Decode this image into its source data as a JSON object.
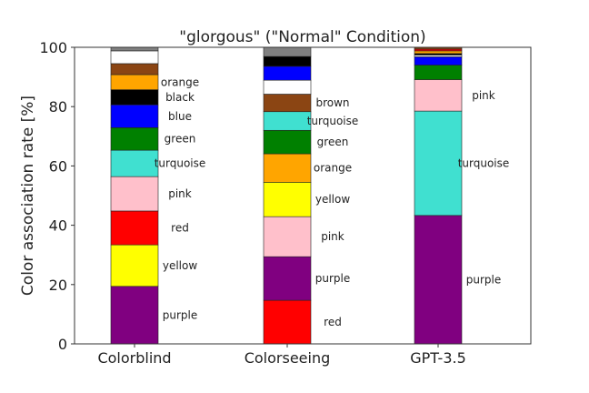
{
  "chart_data": {
    "type": "bar",
    "stacked": true,
    "title": "\"glorgous\" (\"Normal\" Condition)",
    "xlabel": "",
    "ylabel": "Color association rate [%]",
    "ylim": [
      0,
      100
    ],
    "yticks": [
      0,
      20,
      40,
      60,
      80,
      100
    ],
    "grid": false,
    "categories": [
      "Colorblind",
      "Colorseeing",
      "GPT-3.5"
    ],
    "colors": {
      "purple": "#800080",
      "yellow": "#ffff00",
      "red": "#ff0000",
      "pink": "#ffc0cb",
      "turquoise": "#40e0d0",
      "green": "#008000",
      "blue": "#0000ff",
      "black": "#000000",
      "orange": "#ffa500",
      "brown": "#8b4513",
      "white": "#ffffff",
      "gray": "#808080"
    },
    "bars": [
      {
        "category": "Colorblind",
        "segments": [
          {
            "color": "purple",
            "value": 19.4,
            "label": "purple"
          },
          {
            "color": "yellow",
            "value": 14.0,
            "label": "yellow"
          },
          {
            "color": "red",
            "value": 11.4,
            "label": "red"
          },
          {
            "color": "pink",
            "value": 11.6,
            "label": "pink"
          },
          {
            "color": "turquoise",
            "value": 8.9,
            "label": "turquoise"
          },
          {
            "color": "green",
            "value": 7.6,
            "label": "green"
          },
          {
            "color": "blue",
            "value": 7.7,
            "label": "blue"
          },
          {
            "color": "black",
            "value": 5.1,
            "label": "black"
          },
          {
            "color": "orange",
            "value": 5.1,
            "label": "orange"
          },
          {
            "color": "brown",
            "value": 3.7,
            "label": ""
          },
          {
            "color": "white",
            "value": 4.3,
            "label": ""
          },
          {
            "color": "gray",
            "value": 1.2,
            "label": ""
          }
        ]
      },
      {
        "category": "Colorseeing",
        "segments": [
          {
            "color": "red",
            "value": 14.7,
            "label": "red"
          },
          {
            "color": "purple",
            "value": 14.7,
            "label": "purple"
          },
          {
            "color": "pink",
            "value": 13.5,
            "label": "pink"
          },
          {
            "color": "yellow",
            "value": 11.6,
            "label": "yellow"
          },
          {
            "color": "orange",
            "value": 9.6,
            "label": "orange"
          },
          {
            "color": "green",
            "value": 7.9,
            "label": "green"
          },
          {
            "color": "turquoise",
            "value": 6.3,
            "label": "turquoise"
          },
          {
            "color": "brown",
            "value": 5.9,
            "label": "brown"
          },
          {
            "color": "white",
            "value": 4.7,
            "label": ""
          },
          {
            "color": "blue",
            "value": 4.7,
            "label": ""
          },
          {
            "color": "black",
            "value": 3.3,
            "label": ""
          },
          {
            "color": "gray",
            "value": 3.1,
            "label": ""
          }
        ]
      },
      {
        "category": "GPT-3.5",
        "segments": [
          {
            "color": "purple",
            "value": 43.3,
            "label": "purple"
          },
          {
            "color": "turquoise",
            "value": 35.2,
            "label": "turquoise"
          },
          {
            "color": "pink",
            "value": 10.6,
            "label": "pink"
          },
          {
            "color": "green",
            "value": 4.9,
            "label": ""
          },
          {
            "color": "blue",
            "value": 2.8,
            "label": ""
          },
          {
            "color": "white",
            "value": 0.6,
            "label": ""
          },
          {
            "color": "black",
            "value": 0.5,
            "label": ""
          },
          {
            "color": "orange",
            "value": 0.9,
            "label": ""
          },
          {
            "color": "red",
            "value": 0.6,
            "label": ""
          },
          {
            "color": "brown",
            "value": 0.6,
            "label": ""
          }
        ]
      }
    ]
  }
}
